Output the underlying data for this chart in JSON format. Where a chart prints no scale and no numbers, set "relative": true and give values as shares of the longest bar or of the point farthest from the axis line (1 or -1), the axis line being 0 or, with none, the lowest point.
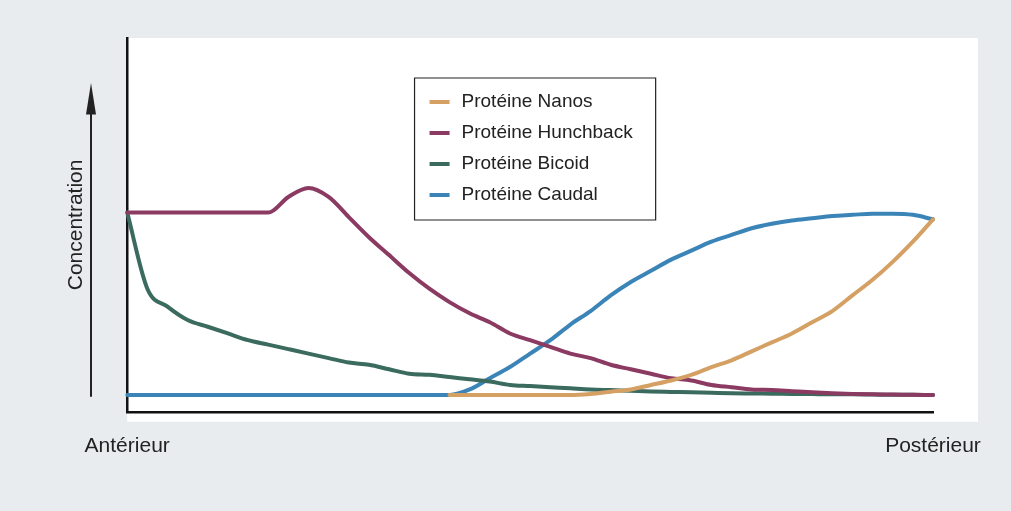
{
  "chart_data": {
    "type": "line",
    "relative": true,
    "ylabel": "Concentration",
    "legend": "top",
    "grid": false,
    "marker": "none",
    "line_style": "solid",
    "categories": [
      "Antérieur",
      null,
      null,
      null,
      null,
      null,
      null,
      null,
      null,
      null,
      null,
      null,
      null,
      null,
      null,
      null,
      null,
      null,
      null,
      null,
      null,
      null,
      null,
      null,
      null,
      null,
      null,
      null,
      null,
      null,
      null,
      null,
      null,
      null,
      null,
      null,
      null,
      null,
      null,
      null,
      "Postérieur"
    ],
    "series": [
      {
        "name": "Protéine Nanos",
        "color": "#d4a064",
        "values": [
          null,
          null,
          null,
          null,
          null,
          null,
          null,
          null,
          null,
          null,
          null,
          null,
          null,
          null,
          null,
          null,
          0.075,
          0.075,
          0.075,
          0.075,
          0.075,
          0.075,
          0.075,
          0.08,
          0.09,
          0.1,
          0.12,
          0.14,
          0.165,
          0.2,
          0.23,
          0.27,
          0.31,
          0.35,
          0.4,
          0.45,
          0.52,
          0.59,
          0.67,
          0.76,
          0.86
        ]
      },
      {
        "name": "Protéine Hunchback",
        "color": "#8b3a62",
        "values": [
          0.89,
          0.89,
          0.89,
          0.89,
          0.89,
          0.89,
          0.89,
          0.89,
          0.96,
          1.0,
          0.96,
          0.87,
          0.78,
          0.7,
          0.62,
          0.55,
          0.49,
          0.44,
          0.4,
          0.35,
          0.32,
          0.29,
          0.26,
          0.24,
          0.21,
          0.19,
          0.17,
          0.15,
          0.14,
          0.12,
          0.11,
          0.1,
          0.097,
          0.092,
          0.087,
          0.083,
          0.08,
          0.078,
          0.077,
          0.076,
          0.075
        ]
      },
      {
        "name": "Protéine Bicoid",
        "color": "#3a6b5e",
        "values": [
          0.89,
          0.55,
          0.47,
          0.41,
          0.38,
          0.35,
          0.32,
          0.3,
          0.28,
          0.26,
          0.24,
          0.22,
          0.21,
          0.19,
          0.17,
          0.165,
          0.155,
          0.145,
          0.135,
          0.12,
          0.115,
          0.11,
          0.105,
          0.1,
          0.097,
          0.094,
          0.091,
          0.089,
          0.087,
          0.085,
          0.083,
          0.082,
          0.081,
          0.08,
          0.079,
          0.078,
          0.078,
          0.077,
          0.076,
          0.076,
          0.075
        ]
      },
      {
        "name": "Protéine Caudal",
        "color": "#3a84b8",
        "values": [
          0.075,
          0.075,
          0.075,
          0.075,
          0.075,
          0.075,
          0.075,
          0.075,
          0.075,
          0.075,
          0.075,
          0.075,
          0.075,
          0.075,
          0.075,
          0.075,
          0.075,
          0.1,
          0.15,
          0.2,
          0.26,
          0.32,
          0.39,
          0.45,
          0.52,
          0.58,
          0.63,
          0.68,
          0.72,
          0.76,
          0.79,
          0.82,
          0.84,
          0.855,
          0.865,
          0.875,
          0.88,
          0.885,
          0.885,
          0.88,
          0.86
        ]
      }
    ]
  }
}
